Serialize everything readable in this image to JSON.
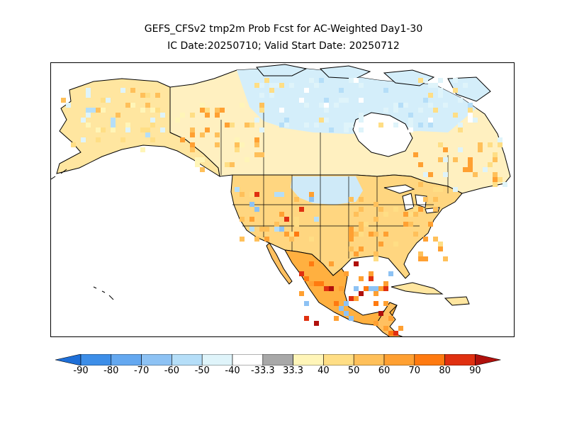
{
  "title_line1": "GEFS_CFSv2 tmp2m Prob Fcst for AC-Weighted Day1-30",
  "title_line2": "IC Date:20250710; Valid Start Date: 20250712",
  "legend": {
    "labels": [
      "-90",
      "-80",
      "-70",
      "-60",
      "-50",
      "-40",
      "-33.3",
      "33.3",
      "40",
      "50",
      "60",
      "70",
      "80",
      "90"
    ],
    "colors": [
      "#1e6fd8",
      "#3d8ee8",
      "#64a8f0",
      "#8dc2f4",
      "#b5def8",
      "#dff4fa",
      "#ffffff",
      "#a8a8a8",
      "#fff5b8",
      "#ffde85",
      "#ffc05a",
      "#ffa032",
      "#ff7a10",
      "#e03010",
      "#b0100c"
    ],
    "left_arrow_color": "#1e6fd8",
    "right_arrow_color": "#b0100c"
  },
  "map_regions": [
    {
      "name": "alaska",
      "tone": "warm-light"
    },
    {
      "name": "northern-canada",
      "tone": "cool-light"
    },
    {
      "name": "hudson-bay",
      "tone": "none"
    },
    {
      "name": "western-canada",
      "tone": "warm-light"
    },
    {
      "name": "eastern-canada",
      "tone": "warm-moderate"
    },
    {
      "name": "western-us",
      "tone": "warm-mixed"
    },
    {
      "name": "northern-plains",
      "tone": "cool-light"
    },
    {
      "name": "eastern-us",
      "tone": "warm-moderate"
    },
    {
      "name": "southeast-us",
      "tone": "warm-moderate"
    },
    {
      "name": "mexico",
      "tone": "warm-strong"
    },
    {
      "name": "central-america",
      "tone": "warm-moderate"
    }
  ]
}
